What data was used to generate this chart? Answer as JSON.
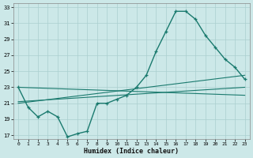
{
  "bg_color": "#cce8e8",
  "grid_color": "#aacfcf",
  "line_color": "#1a7a6e",
  "xlim": [
    -0.5,
    23.5
  ],
  "ylim": [
    16.5,
    33.5
  ],
  "xticks": [
    0,
    1,
    2,
    3,
    4,
    5,
    6,
    7,
    8,
    9,
    10,
    11,
    12,
    13,
    14,
    15,
    16,
    17,
    18,
    19,
    20,
    21,
    22,
    23
  ],
  "yticks": [
    17,
    19,
    21,
    23,
    25,
    27,
    29,
    31,
    33
  ],
  "xlabel": "Humidex (Indice chaleur)",
  "main_x": [
    0,
    1,
    2,
    3,
    4,
    5,
    6,
    7,
    8,
    9,
    10,
    11,
    12,
    13,
    14,
    15,
    16,
    17,
    18,
    19,
    20,
    21,
    22,
    23
  ],
  "main_y": [
    23,
    20.5,
    19.3,
    20.0,
    19.3,
    16.8,
    17.2,
    17.5,
    21.0,
    21.0,
    21.5,
    22.0,
    23.0,
    24.5,
    27.5,
    30.0,
    32.5,
    32.5,
    31.5,
    29.5,
    28.0,
    26.5,
    25.5,
    24.0
  ],
  "trend1_x": [
    0,
    23
  ],
  "trend1_y": [
    21.2,
    23.0
  ],
  "trend2_x": [
    0,
    23
  ],
  "trend2_y": [
    23.0,
    22.0
  ],
  "trend3_x": [
    0,
    23
  ],
  "trend3_y": [
    21.0,
    24.5
  ],
  "figsize": [
    3.2,
    2.0
  ],
  "dpi": 100
}
